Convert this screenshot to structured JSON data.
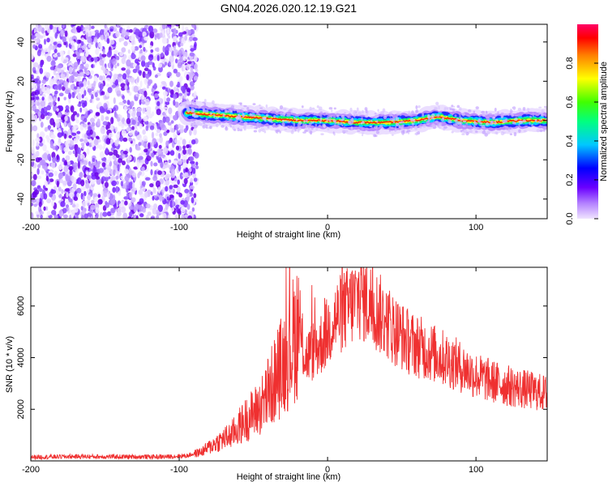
{
  "title": "GN04.2026.020.12.19.G21",
  "colors": {
    "series_line": "#ef3030",
    "axis": "#000000",
    "background": "#ffffff"
  },
  "chart_data": [
    {
      "type": "heatmap",
      "xlabel": "Height of straight line (km)",
      "ylabel": "Frequency (Hz)",
      "xlim": [
        -200,
        148
      ],
      "ylim": [
        -50,
        49
      ],
      "x_ticks": [
        -200,
        -100,
        0,
        100
      ],
      "y_ticks": [
        40,
        20,
        0,
        -20,
        -40
      ],
      "colorbar": {
        "label": "Normalized spectral amplitude",
        "range": [
          0,
          1
        ],
        "ticks": [
          "0.0",
          "0.2",
          "0.4",
          "0.6",
          "0.8"
        ]
      },
      "noise_region_x": [
        -200,
        -90
      ],
      "signal_track": {
        "x": [
          -95,
          -80,
          -60,
          -40,
          -20,
          0,
          20,
          40,
          60,
          75,
          90,
          110,
          130,
          148
        ],
        "freq": [
          4,
          3,
          2,
          1,
          0,
          0,
          -1,
          -1,
          0,
          2,
          0,
          -1,
          0,
          0
        ]
      }
    },
    {
      "type": "line",
      "xlabel": "Height of straight line (km)",
      "ylabel": "SNR (10 * v/v)",
      "xlim": [
        -200,
        148
      ],
      "ylim": [
        0,
        7500
      ],
      "x_ticks": [
        -200,
        -100,
        0,
        100
      ],
      "y_ticks": [
        2000,
        4000,
        6000
      ],
      "series": [
        {
          "name": "SNR",
          "x": [
            -200,
            -170,
            -140,
            -110,
            -95,
            -85,
            -75,
            -65,
            -55,
            -45,
            -35,
            -25,
            -20,
            -15,
            -5,
            5,
            15,
            22,
            28,
            35,
            45,
            55,
            70,
            85,
            100,
            115,
            130,
            148
          ],
          "values": [
            150,
            170,
            160,
            160,
            200,
            350,
            700,
            1000,
            1600,
            2100,
            3200,
            4400,
            5200,
            4000,
            4500,
            5500,
            6000,
            6400,
            6100,
            5700,
            5100,
            4600,
            4200,
            3800,
            3300,
            3000,
            2800,
            2600
          ]
        }
      ]
    }
  ]
}
